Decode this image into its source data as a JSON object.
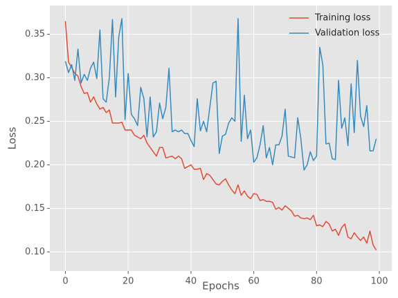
{
  "chart_data": {
    "type": "line",
    "x_label": "Epochs",
    "y_label": "Loss",
    "x": [
      0,
      1,
      2,
      3,
      4,
      5,
      6,
      7,
      8,
      9,
      10,
      11,
      12,
      13,
      14,
      15,
      16,
      17,
      18,
      19,
      20,
      21,
      22,
      23,
      24,
      25,
      26,
      27,
      28,
      29,
      30,
      31,
      32,
      33,
      34,
      35,
      36,
      37,
      38,
      39,
      40,
      41,
      42,
      43,
      44,
      45,
      46,
      47,
      48,
      49,
      50,
      51,
      52,
      53,
      54,
      55,
      56,
      57,
      58,
      59,
      60,
      61,
      62,
      63,
      64,
      65,
      66,
      67,
      68,
      69,
      70,
      71,
      72,
      73,
      74,
      75,
      76,
      77,
      78,
      79,
      80,
      81,
      82,
      83,
      84,
      85,
      86,
      87,
      88,
      89,
      90,
      91,
      92,
      93,
      94,
      95,
      96,
      97,
      98,
      99
    ],
    "series": [
      {
        "name": "Training loss",
        "color": "#E24A33",
        "values": [
          0.365,
          0.318,
          0.312,
          0.305,
          0.302,
          0.29,
          0.282,
          0.283,
          0.272,
          0.278,
          0.27,
          0.264,
          0.266,
          0.26,
          0.263,
          0.248,
          0.248,
          0.248,
          0.249,
          0.24,
          0.24,
          0.24,
          0.234,
          0.232,
          0.23,
          0.234,
          0.225,
          0.22,
          0.215,
          0.21,
          0.22,
          0.22,
          0.208,
          0.209,
          0.21,
          0.207,
          0.21,
          0.207,
          0.196,
          0.198,
          0.2,
          0.195,
          0.195,
          0.196,
          0.183,
          0.19,
          0.188,
          0.183,
          0.178,
          0.177,
          0.181,
          0.184,
          0.177,
          0.171,
          0.167,
          0.177,
          0.165,
          0.17,
          0.164,
          0.161,
          0.167,
          0.166,
          0.159,
          0.16,
          0.158,
          0.158,
          0.157,
          0.149,
          0.151,
          0.148,
          0.153,
          0.15,
          0.147,
          0.141,
          0.142,
          0.139,
          0.138,
          0.139,
          0.137,
          0.142,
          0.13,
          0.131,
          0.129,
          0.135,
          0.132,
          0.124,
          0.126,
          0.119,
          0.128,
          0.132,
          0.117,
          0.115,
          0.122,
          0.117,
          0.113,
          0.117,
          0.11,
          0.124,
          0.108,
          0.102
        ]
      },
      {
        "name": "Validation loss",
        "color": "#348ABD",
        "values": [
          0.319,
          0.306,
          0.315,
          0.297,
          0.333,
          0.294,
          0.304,
          0.297,
          0.311,
          0.318,
          0.299,
          0.355,
          0.276,
          0.272,
          0.3,
          0.367,
          0.278,
          0.347,
          0.368,
          0.252,
          0.305,
          0.258,
          0.253,
          0.245,
          0.289,
          0.276,
          0.232,
          0.278,
          0.232,
          0.238,
          0.271,
          0.253,
          0.266,
          0.311,
          0.238,
          0.24,
          0.238,
          0.24,
          0.236,
          0.236,
          0.228,
          0.221,
          0.276,
          0.239,
          0.25,
          0.238,
          0.266,
          0.294,
          0.296,
          0.213,
          0.233,
          0.235,
          0.248,
          0.254,
          0.25,
          0.368,
          0.227,
          0.28,
          0.23,
          0.24,
          0.203,
          0.208,
          0.223,
          0.245,
          0.208,
          0.22,
          0.2,
          0.223,
          0.223,
          0.233,
          0.264,
          0.21,
          0.209,
          0.208,
          0.254,
          0.23,
          0.194,
          0.2,
          0.215,
          0.205,
          0.21,
          0.335,
          0.315,
          0.224,
          0.225,
          0.207,
          0.206,
          0.297,
          0.242,
          0.254,
          0.222,
          0.293,
          0.237,
          0.32,
          0.256,
          0.244,
          0.268,
          0.216,
          0.216,
          0.23
        ]
      }
    ],
    "xlim": [
      -4.95,
      103.95
    ],
    "xticks": [
      0,
      20,
      40,
      60,
      80,
      100
    ],
    "ylim": [
      0.078,
      0.383
    ],
    "yticks": [
      {
        "value": 0.1,
        "label": "0.10"
      },
      0.15,
      {
        "value": 0.2,
        "label": "0.20"
      },
      0.25,
      {
        "value": 0.3,
        "label": "0.30"
      },
      0.35
    ],
    "grid": true,
    "legend": "upper right"
  }
}
